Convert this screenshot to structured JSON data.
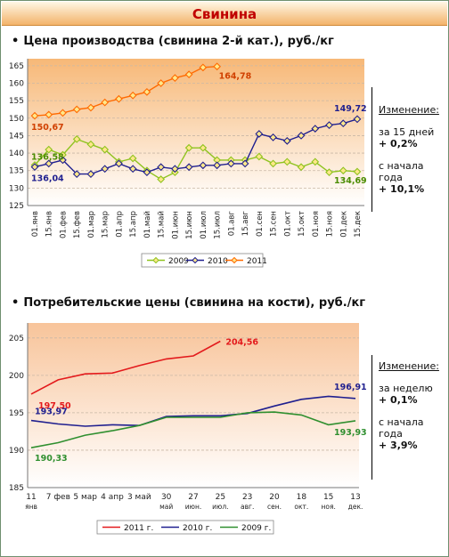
{
  "banner": {
    "title": "Свинина"
  },
  "charts": [
    {
      "title": "Цена производства (свинина 2-й кат.), руб./кг",
      "side": {
        "heading": "Изменение:",
        "p1_label": "за 15 дней",
        "p1_value": "+ 0,2%",
        "p2_label": "с начала года",
        "p2_value": "+ 10,1%"
      },
      "legend": [
        "2009",
        "2010",
        "2011"
      ]
    },
    {
      "title": "Потребительские цены (свинина на кости), руб./кг",
      "side": {
        "heading": "Изменение:",
        "p1_label": "за неделю",
        "p1_value": "+ 0,1%",
        "p2_label": "с начала года",
        "p2_value": "+ 3,9%"
      },
      "legend": [
        "2011 г.",
        "2010 г.",
        "2009 г."
      ]
    }
  ],
  "chart_data": [
    {
      "type": "line",
      "ylim": [
        125,
        167
      ],
      "yticks": [
        125,
        130,
        135,
        140,
        145,
        150,
        155,
        160,
        165
      ],
      "grid": true,
      "categories": [
        "01.янв",
        "15.янв",
        "01.фев",
        "15.фев",
        "01.мар",
        "15.мар",
        "01.апр",
        "15.апр",
        "01.май",
        "15.май",
        "01.июн",
        "15.июн",
        "01.июл",
        "15.июл",
        "01.авг",
        "15.авг",
        "01.сен",
        "15.сен",
        "01.окт",
        "15.окт",
        "01.ноя",
        "15.ноя",
        "01.дек",
        "15.дек"
      ],
      "series": [
        {
          "name": "2009",
          "color": "#8fc31f",
          "values": [
            136.58,
            141,
            139.5,
            144,
            142.5,
            141,
            137.5,
            138.5,
            135,
            132.5,
            134.5,
            141.5,
            141.5,
            138,
            138,
            138,
            139,
            137,
            137.5,
            136,
            137.5,
            134.5,
            135,
            134.69
          ]
        },
        {
          "name": "2010",
          "color": "#1f1f8f",
          "values": [
            136.04,
            137,
            138,
            134,
            134,
            135.5,
            137,
            135.5,
            134.5,
            136,
            135.5,
            136,
            136.5,
            136.5,
            137,
            137,
            145.5,
            144.5,
            143.5,
            145,
            147,
            148,
            148.5,
            149.72
          ]
        },
        {
          "name": "2011",
          "color": "#ff6a00",
          "values": [
            150.67,
            151,
            151.5,
            152.5,
            153,
            154.5,
            155.5,
            156.5,
            157.5,
            160,
            161.5,
            162.5,
            164.5,
            164.78,
            null,
            null,
            null,
            null,
            null,
            null,
            null,
            null,
            null,
            null
          ]
        }
      ],
      "labels": [
        {
          "text": "164,78",
          "series": "2011",
          "index": 13,
          "color": "#d04000"
        },
        {
          "text": "150,67",
          "series": "2011",
          "index": 0,
          "color": "#d04000"
        },
        {
          "text": "136,58",
          "series": "2009",
          "index": 0,
          "color": "#4a8c00"
        },
        {
          "text": "136,04",
          "series": "2010",
          "index": 0,
          "color": "#1f1f8f"
        },
        {
          "text": "149,72",
          "series": "2010",
          "index": 23,
          "color": "#1f1f8f"
        },
        {
          "text": "134,69",
          "series": "2009",
          "index": 23,
          "color": "#4a8c00"
        }
      ]
    },
    {
      "type": "line",
      "ylim": [
        185,
        207
      ],
      "yticks": [
        185,
        190,
        195,
        200,
        205
      ],
      "grid": true,
      "categories": [
        [
          "11",
          "янв"
        ],
        [
          "7 фев",
          ""
        ],
        [
          "5 мар",
          ""
        ],
        [
          "4 апр",
          ""
        ],
        [
          "3 май",
          ""
        ],
        [
          "30",
          "май"
        ],
        [
          "27",
          "июн."
        ],
        [
          "25",
          "июл."
        ],
        [
          "23",
          "авг."
        ],
        [
          "20",
          "сен."
        ],
        [
          "18",
          "окт."
        ],
        [
          "15",
          "ноя."
        ],
        [
          "13",
          "дек."
        ]
      ],
      "series": [
        {
          "name": "2011 г.",
          "color": "#e31a1c",
          "values": [
            197.5,
            199.4,
            200.2,
            200.3,
            201.3,
            202.2,
            202.6,
            204.56,
            null,
            null,
            null,
            null,
            null
          ]
        },
        {
          "name": "2010 г.",
          "color": "#1f1f8f",
          "values": [
            193.97,
            193.5,
            193.2,
            193.4,
            193.3,
            194.5,
            194.6,
            194.6,
            194.9,
            195.9,
            196.8,
            197.2,
            196.91
          ]
        },
        {
          "name": "2009 г.",
          "color": "#2f8f2f",
          "values": [
            190.33,
            191,
            192,
            192.6,
            193.3,
            194.4,
            194.4,
            194.4,
            195.0,
            195.1,
            194.7,
            193.4,
            193.93
          ]
        }
      ],
      "labels": [
        {
          "text": "204,56",
          "series": "2011 г.",
          "index": 7,
          "color": "#e31a1c"
        },
        {
          "text": "197,50",
          "series": "2011 г.",
          "index": 0,
          "color": "#e31a1c"
        },
        {
          "text": "193,97",
          "series": "2010 г.",
          "index": 0,
          "color": "#1f1f8f"
        },
        {
          "text": "190,33",
          "series": "2009 г.",
          "index": 0,
          "color": "#2f8f2f"
        },
        {
          "text": "196,91",
          "series": "2010 г.",
          "index": 12,
          "color": "#1f1f8f"
        },
        {
          "text": "193,93",
          "series": "2009 г.",
          "index": 12,
          "color": "#2f8f2f"
        }
      ]
    }
  ]
}
